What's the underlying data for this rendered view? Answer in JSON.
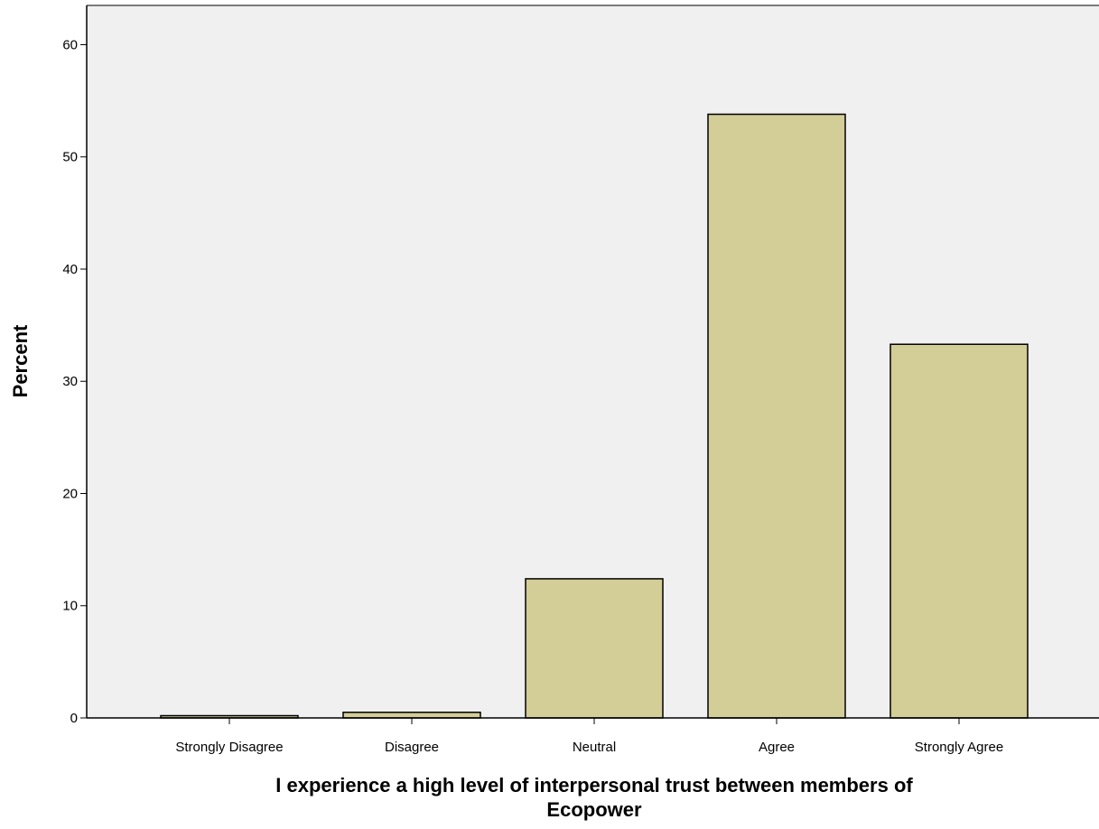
{
  "chart_data": {
    "type": "bar",
    "categories": [
      "Strongly Disagree",
      "Disagree",
      "Neutral",
      "Agree",
      "Strongly Agree"
    ],
    "values": [
      0.2,
      0.5,
      12.4,
      53.8,
      33.3
    ],
    "xlabel_lines": [
      "I experience a high level of interpersonal trust between members of",
      "Ecopower"
    ],
    "ylabel": "Percent",
    "ylim": [
      0,
      63.5
    ],
    "yticks": [
      "0",
      "10",
      "20",
      "30",
      "40",
      "50",
      "60"
    ],
    "grid": false,
    "bar_color": "#d3cd97",
    "plot_background": "#f0f0f0"
  }
}
